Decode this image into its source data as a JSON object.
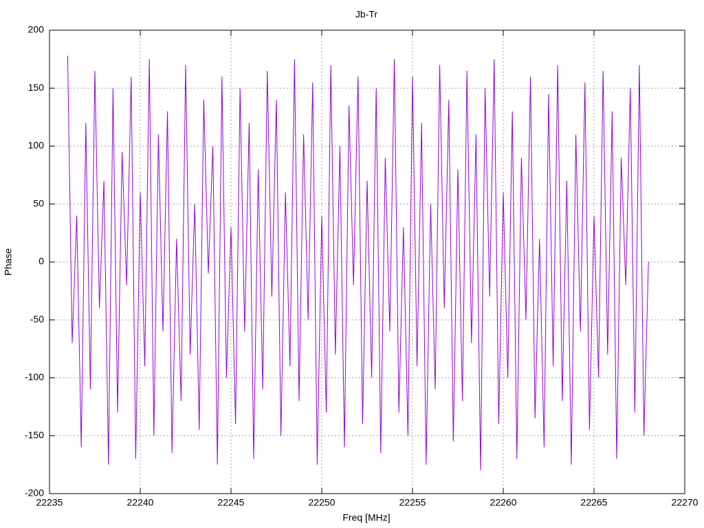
{
  "chart_data": {
    "type": "line",
    "title": "Jb-Tr",
    "xlabel": "Freq [MHz]",
    "ylabel": "Phase",
    "color": "#9400d3",
    "x": [
      22236,
      22236.25,
      22236.5,
      22236.75,
      22237,
      22237.25,
      22237.5,
      22237.75,
      22238,
      22238.25,
      22238.5,
      22238.75,
      22239,
      22239.25,
      22239.5,
      22239.75,
      22240,
      22240.25,
      22240.5,
      22240.75,
      22241,
      22241.25,
      22241.5,
      22241.75,
      22242,
      22242.25,
      22242.5,
      22242.75,
      22243,
      22243.25,
      22243.5,
      22243.75,
      22244,
      22244.25,
      22244.5,
      22244.75,
      22245,
      22245.25,
      22245.5,
      22245.75,
      22246,
      22246.25,
      22246.5,
      22246.75,
      22247,
      22247.25,
      22247.5,
      22247.75,
      22248,
      22248.25,
      22248.5,
      22248.75,
      22249,
      22249.25,
      22249.5,
      22249.75,
      22250,
      22250.25,
      22250.5,
      22250.75,
      22251,
      22251.25,
      22251.5,
      22251.75,
      22252,
      22252.25,
      22252.5,
      22252.75,
      22253,
      22253.25,
      22253.5,
      22253.75,
      22254,
      22254.25,
      22254.5,
      22254.75,
      22255,
      22255.25,
      22255.5,
      22255.75,
      22256,
      22256.25,
      22256.5,
      22256.75,
      22257,
      22257.25,
      22257.5,
      22257.75,
      22258,
      22258.25,
      22258.5,
      22258.75,
      22259,
      22259.25,
      22259.5,
      22259.75,
      22260,
      22260.25,
      22260.5,
      22260.75,
      22261,
      22261.25,
      22261.5,
      22261.75,
      22262,
      22262.25,
      22262.5,
      22262.75,
      22263,
      22263.25,
      22263.5,
      22263.75,
      22264,
      22264.25,
      22264.5,
      22264.75,
      22265,
      22265.25,
      22265.5,
      22265.75,
      22266,
      22266.25,
      22266.5,
      22266.75,
      22267,
      22267.25,
      22267.5,
      22267.75,
      22268
    ],
    "values": [
      178,
      -70,
      40,
      -160,
      120,
      -110,
      165,
      -40,
      70,
      -175,
      150,
      -130,
      95,
      -20,
      160,
      -170,
      60,
      -90,
      175,
      -150,
      110,
      -60,
      130,
      -165,
      20,
      -120,
      170,
      -80,
      50,
      -145,
      140,
      -10,
      100,
      -175,
      160,
      -100,
      30,
      -140,
      150,
      -60,
      120,
      -170,
      80,
      -110,
      165,
      -30,
      140,
      -150,
      60,
      -90,
      175,
      -120,
      110,
      -50,
      155,
      -175,
      40,
      -130,
      170,
      -80,
      100,
      -160,
      135,
      -20,
      160,
      -140,
      70,
      -100,
      150,
      -165,
      90,
      -60,
      175,
      -130,
      30,
      -150,
      160,
      -90,
      120,
      -175,
      50,
      -110,
      170,
      -40,
      140,
      -155,
      80,
      -120,
      165,
      -70,
      110,
      -180,
      150,
      -30,
      175,
      -140,
      60,
      -100,
      130,
      -170,
      90,
      -50,
      160,
      -135,
      20,
      -160,
      145,
      -90,
      170,
      -120,
      70,
      -175,
      110,
      -60,
      155,
      -145,
      40,
      -100,
      165,
      -80,
      130,
      -170,
      90,
      -20,
      150,
      -130,
      170,
      -150,
      0
    ],
    "xlim": [
      22235,
      22270
    ],
    "xticks": [
      22235,
      22240,
      22245,
      22250,
      22255,
      22260,
      22265,
      22270
    ],
    "ylim": [
      -200,
      200
    ],
    "yticks": [
      -200,
      -150,
      -100,
      -50,
      0,
      50,
      100,
      150,
      200
    ],
    "grid": true
  }
}
